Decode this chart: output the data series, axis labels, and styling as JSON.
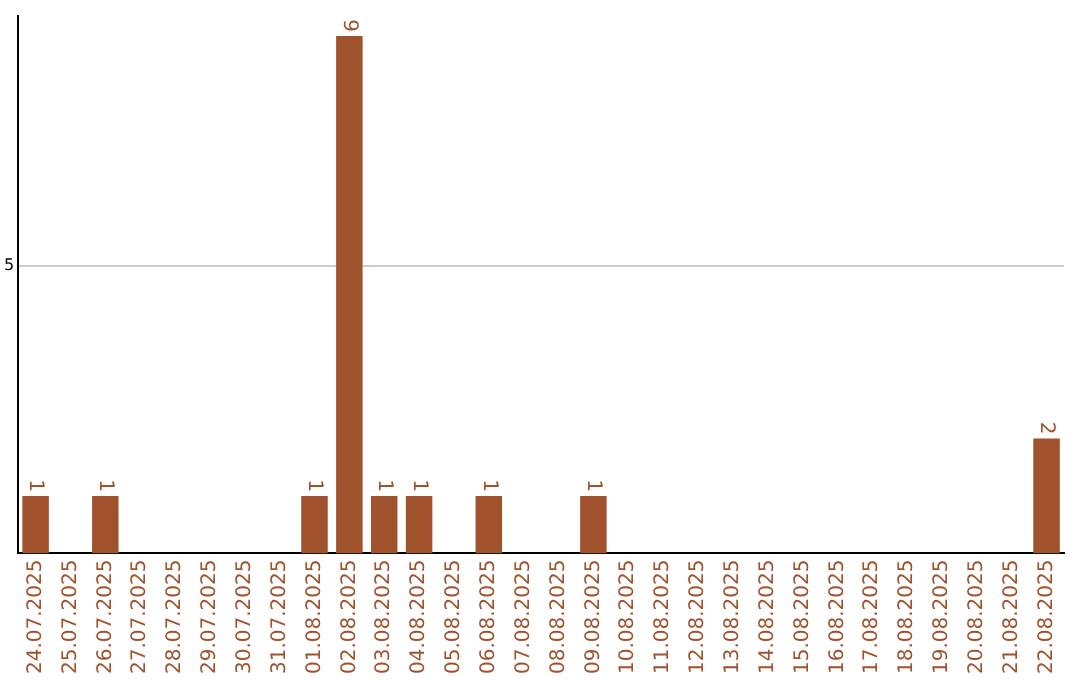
{
  "chart_data": {
    "type": "bar",
    "categories": [
      "24.07.2025",
      "25.07.2025",
      "26.07.2025",
      "27.07.2025",
      "28.07.2025",
      "29.07.2025",
      "30.07.2025",
      "31.07.2025",
      "01.08.2025",
      "02.08.2025",
      "03.08.2025",
      "04.08.2025",
      "05.08.2025",
      "06.08.2025",
      "07.08.2025",
      "08.08.2025",
      "09.08.2025",
      "10.08.2025",
      "11.08.2025",
      "12.08.2025",
      "13.08.2025",
      "14.08.2025",
      "15.08.2025",
      "16.08.2025",
      "17.08.2025",
      "18.08.2025",
      "19.08.2025",
      "20.08.2025",
      "21.08.2025",
      "22.08.2025"
    ],
    "values": [
      1,
      0,
      1,
      0,
      0,
      0,
      0,
      0,
      1,
      9,
      1,
      1,
      0,
      1,
      0,
      0,
      1,
      0,
      0,
      0,
      0,
      0,
      0,
      0,
      0,
      0,
      0,
      0,
      0,
      2
    ],
    "value_labels": [
      "1",
      null,
      "1",
      null,
      null,
      null,
      null,
      null,
      "1",
      "9",
      "1",
      "1",
      null,
      "1",
      null,
      null,
      "1",
      null,
      null,
      null,
      null,
      null,
      null,
      null,
      null,
      null,
      null,
      null,
      null,
      "2"
    ],
    "color": "#a0522d",
    "ylim": [
      0,
      9.35
    ],
    "yticks": [
      5
    ],
    "grid": "y"
  }
}
